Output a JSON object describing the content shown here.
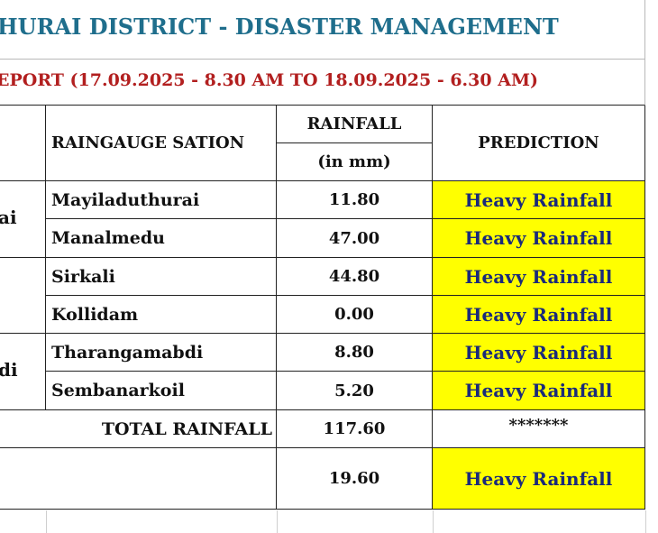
{
  "header": {
    "title": "HURAI DISTRICT - DISASTER MANAGEMENT",
    "subtitle": "EPORT (17.09.2025 - 8.30 AM TO 18.09.2025 - 6.30 AM)"
  },
  "table": {
    "col_station": "RAINGAUGE SATION",
    "col_rainfall": "RAINFALL",
    "col_rainfall_unit": "(in mm)",
    "col_prediction": "PREDICTION",
    "taluk_fragments": [
      "ai",
      "di"
    ],
    "rows": [
      {
        "station": "Mayiladuthurai",
        "rainfall": "11.80",
        "prediction": "Heavy Rainfall"
      },
      {
        "station": "Manalmedu",
        "rainfall": "47.00",
        "prediction": "Heavy Rainfall"
      },
      {
        "station": "Sirkali",
        "rainfall": "44.80",
        "prediction": "Heavy Rainfall"
      },
      {
        "station": "Kollidam",
        "rainfall": "0.00",
        "prediction": "Heavy Rainfall"
      },
      {
        "station": "Tharangamabdi",
        "rainfall": "8.80",
        "prediction": "Heavy Rainfall"
      },
      {
        "station": "Sembanarkoil",
        "rainfall": "5.20",
        "prediction": "Heavy Rainfall"
      }
    ],
    "total_label": "TOTAL RAINFALL",
    "total_value": "117.60",
    "total_prediction": "*******",
    "average_value": "19.60",
    "average_prediction": "Heavy Rainfall"
  },
  "colors": {
    "title": "#1f6e8c",
    "subtitle": "#b21f1f",
    "highlight": "#ffff00",
    "prediction_text": "#1a2a7a"
  }
}
